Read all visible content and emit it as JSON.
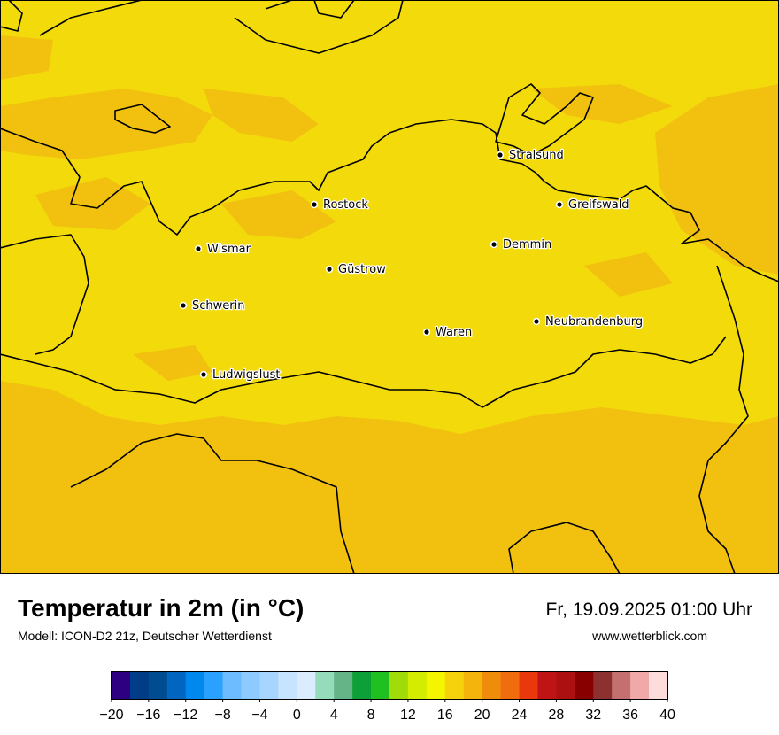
{
  "map": {
    "background_color": "#f3da0b",
    "warm_patch_color": "#f1bc11",
    "border_color": "#000000",
    "cities": [
      {
        "name": "Stralsund",
        "marker": "dot"
      },
      {
        "name": "Rostock",
        "marker": "dot"
      },
      {
        "name": "Greifswald",
        "marker": "dot"
      },
      {
        "name": "Wismar",
        "marker": "dot"
      },
      {
        "name": "Demmin",
        "marker": "dot"
      },
      {
        "name": "Güstrow",
        "marker": "dot"
      },
      {
        "name": "Schwerin",
        "marker": "dot"
      },
      {
        "name": "Neubrandenburg",
        "marker": "dot"
      },
      {
        "name": "Waren",
        "marker": "dot"
      },
      {
        "name": "Ludwigslust",
        "marker": "dot"
      }
    ]
  },
  "header": {
    "title": "Temperatur in 2m (in °C)",
    "model": "Modell: ICON-D2 21z, Deutscher Wetterdienst",
    "datetime": "Fr, 19.09.2025 01:00 Uhr",
    "website": "www.wetterblick.com"
  },
  "legend": {
    "tick_labels": [
      "−20",
      "−16",
      "−12",
      "−8",
      "−4",
      "0",
      "4",
      "8",
      "12",
      "16",
      "20",
      "24",
      "28",
      "32",
      "36",
      "40"
    ],
    "colors": [
      "#2c0080",
      "#003c88",
      "#004c90",
      "#0066c0",
      "#0088ee",
      "#2aa0ff",
      "#6cbcff",
      "#8ccaff",
      "#a6d6ff",
      "#c6e4ff",
      "#dbecff",
      "#94dcbc",
      "#64b488",
      "#0ea038",
      "#20c020",
      "#a0dc0a",
      "#d4ec00",
      "#f5f500",
      "#f5d20c",
      "#f5b40c",
      "#f08c0c",
      "#f06c0c",
      "#e8380c",
      "#c01414",
      "#ac1010",
      "#880000",
      "#8c3030",
      "#c47070",
      "#f0a8a8",
      "#ffdcdc"
    ]
  }
}
